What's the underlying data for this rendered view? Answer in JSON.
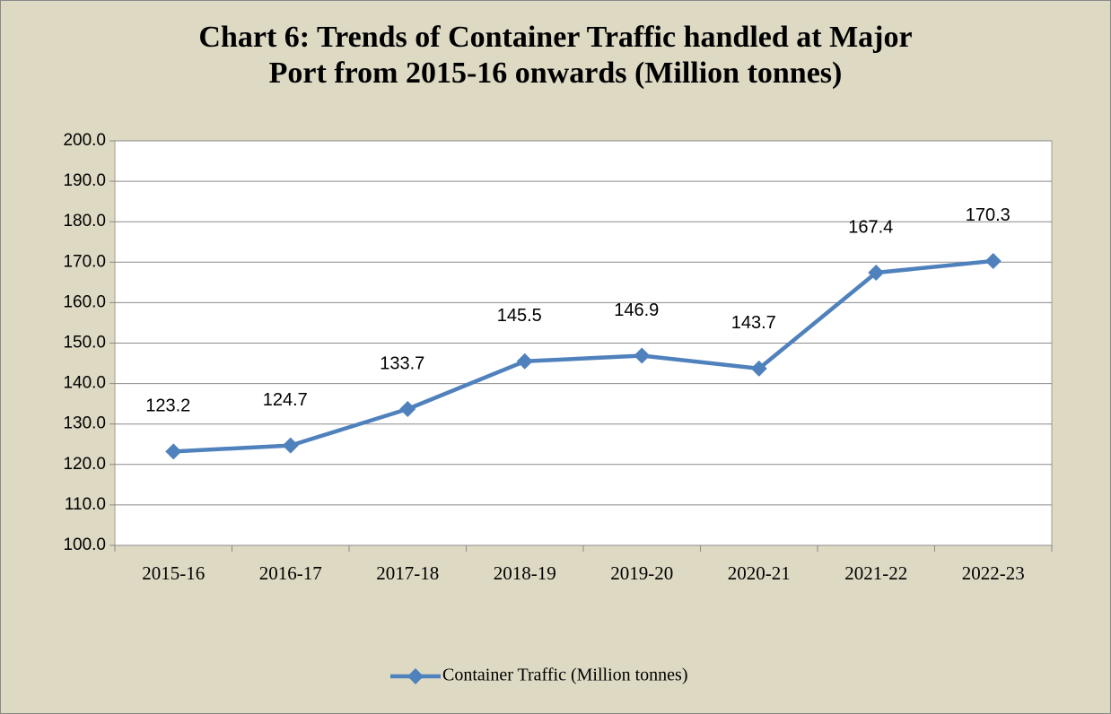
{
  "chart_data": {
    "type": "line",
    "title": "Chart 6: Trends of Container Traffic handled at Major Port from 2015-16 onwards (Million tonnes)",
    "categories": [
      "2015-16",
      "2016-17",
      "2017-18",
      "2018-19",
      "2019-20",
      "2020-21",
      "2021-22",
      "2022-23"
    ],
    "series": [
      {
        "name": "Container Traffic (Million tonnes)",
        "color": "#4f81bd",
        "values": [
          123.2,
          124.7,
          133.7,
          145.5,
          146.9,
          143.7,
          167.4,
          170.3
        ]
      }
    ],
    "ylim": [
      100,
      200
    ],
    "yticks": [
      {
        "value": 100,
        "label": "100.0"
      },
      {
        "value": 110,
        "label": "110.0"
      },
      {
        "value": 120,
        "label": "120.0"
      },
      {
        "value": 130,
        "label": "130.0"
      },
      {
        "value": 140,
        "label": "140.0"
      },
      {
        "value": 150,
        "label": "150.0"
      },
      {
        "value": 160,
        "label": "160.0"
      },
      {
        "value": 170,
        "label": "170.0"
      },
      {
        "value": 180,
        "label": "180.0"
      },
      {
        "value": 190,
        "label": "190.0"
      },
      {
        "value": 200,
        "label": "200.0"
      }
    ],
    "grid": true,
    "legend": "bottom"
  }
}
